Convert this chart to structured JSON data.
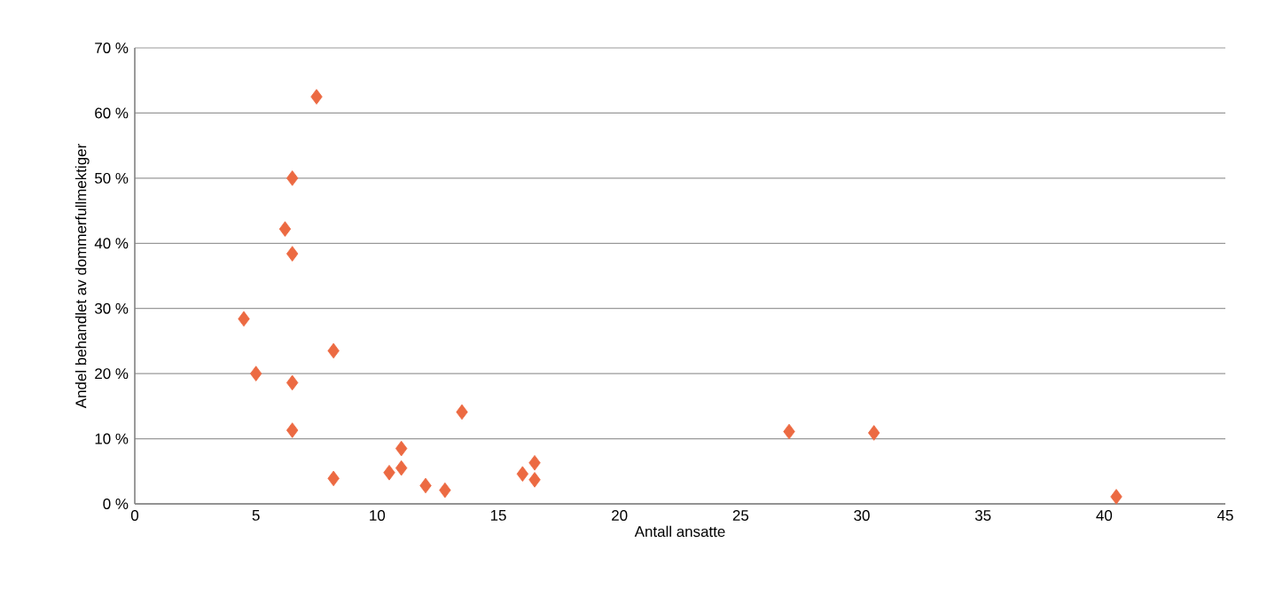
{
  "chart_data": {
    "type": "scatter",
    "xlabel": "Antall ansatte",
    "ylabel": "Andel behandlet av dommerfullmektiger",
    "marker": "diamond",
    "grid": "y",
    "xlim": [
      0,
      45
    ],
    "xticks": [
      0,
      5,
      10,
      15,
      20,
      25,
      30,
      35,
      40,
      45
    ],
    "ylim": [
      0,
      70
    ],
    "yticks": [
      {
        "value": 0,
        "label": "0 %"
      },
      {
        "value": 10,
        "label": "10 %"
      },
      {
        "value": 20,
        "label": "20 %"
      },
      {
        "value": 30,
        "label": "30 %"
      },
      {
        "value": 40,
        "label": "40 %"
      },
      {
        "value": 50,
        "label": "50 %"
      },
      {
        "value": 60,
        "label": "60 %"
      },
      {
        "value": 70,
        "label": "70 %"
      }
    ],
    "series": [
      {
        "color": "#ec6a42",
        "x": [
          7.5,
          6.5,
          6.2,
          6.5,
          4.5,
          8.2,
          5.0,
          6.5,
          6.5,
          13.5,
          11.0,
          8.2,
          10.5,
          11.0,
          12.0,
          12.8,
          16.0,
          16.5,
          16.5,
          27.0,
          30.5,
          40.5
        ],
        "values": [
          62.5,
          50.0,
          42.2,
          38.4,
          28.4,
          23.5,
          20.0,
          18.6,
          11.3,
          14.1,
          8.5,
          3.9,
          4.8,
          5.5,
          2.8,
          2.1,
          4.6,
          6.3,
          3.7,
          11.1,
          10.9,
          1.1
        ]
      }
    ]
  }
}
